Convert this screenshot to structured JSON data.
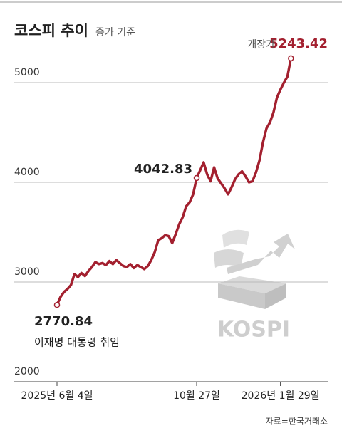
{
  "chart_data": {
    "type": "line",
    "title": "코스피 추이",
    "subtitle": "종가 기준",
    "source": "자료=한국거래소",
    "logo_text": "KOSPI",
    "annotations": [
      "이재명 대통령 취임",
      "개장가"
    ],
    "categories": [
      "2025년 6월 4일",
      null,
      null,
      null,
      null,
      null,
      null,
      null,
      null,
      null,
      null,
      null,
      null,
      null,
      null,
      null,
      null,
      null,
      null,
      null,
      null,
      null,
      null,
      null,
      null,
      null,
      null,
      null,
      null,
      null,
      null,
      null,
      null,
      null,
      null,
      null,
      null,
      null,
      null,
      null,
      "10월 27일",
      null,
      null,
      null,
      null,
      null,
      null,
      null,
      null,
      null,
      null,
      null,
      null,
      null,
      null,
      null,
      null,
      null,
      null,
      null,
      null,
      null,
      null,
      null,
      "2026년 1월 29일",
      null,
      null,
      null
    ],
    "series": [
      {
        "name": "코스피",
        "color": "#a3202f",
        "values": [
          2770.84,
          2850,
          2900,
          2930,
          2970,
          3080,
          3050,
          3090,
          3060,
          3110,
          3150,
          3200,
          3180,
          3190,
          3170,
          3210,
          3180,
          3220,
          3190,
          3160,
          3150,
          3180,
          3140,
          3170,
          3150,
          3130,
          3160,
          3220,
          3300,
          3420,
          3440,
          3470,
          3460,
          3390,
          3480,
          3580,
          3650,
          3760,
          3800,
          3880,
          4042.83,
          4120,
          4200,
          4080,
          4010,
          4150,
          4040,
          3990,
          3940,
          3880,
          3950,
          4030,
          4080,
          4110,
          4060,
          4000,
          4010,
          4100,
          4220,
          4400,
          4540,
          4600,
          4700,
          4850,
          4930,
          5000,
          5060,
          5243.42
        ]
      }
    ],
    "ylim": [
      2000,
      5550
    ],
    "yticks": [
      2000,
      3000,
      4000,
      5000
    ],
    "grid": true
  }
}
